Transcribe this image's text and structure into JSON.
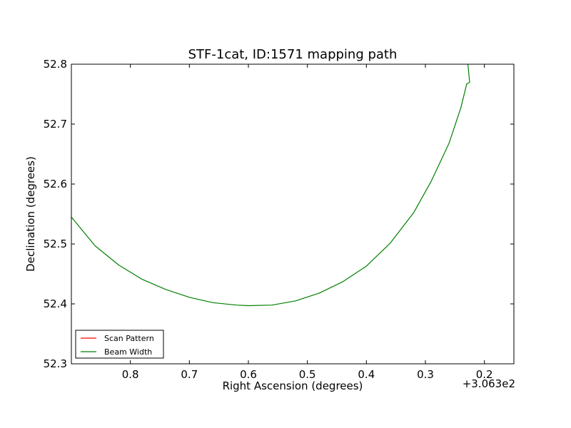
{
  "chart_data": {
    "type": "line",
    "title": "STF-1cat, ID:1571 mapping path",
    "xlabel": "Right Ascension (degrees)",
    "ylabel": "Declination (degrees)",
    "x_offset_text": "+3.063e2",
    "xlim": [
      0.9,
      0.15
    ],
    "ylim": [
      52.3,
      52.8
    ],
    "x_inverted": true,
    "x_ticks": [
      0.8,
      0.7,
      0.6,
      0.5,
      0.4,
      0.3,
      0.2
    ],
    "x_tick_labels": [
      "0.8",
      "0.7",
      "0.6",
      "0.5",
      "0.4",
      "0.3",
      "0.2"
    ],
    "y_ticks": [
      52.3,
      52.4,
      52.5,
      52.6,
      52.7,
      52.8
    ],
    "y_tick_labels": [
      "52.3",
      "52.4",
      "52.5",
      "52.6",
      "52.7",
      "52.8"
    ],
    "grid": false,
    "legend_position": "lower-left",
    "series": [
      {
        "name": "Scan Pattern",
        "color": "#ff0000",
        "x": [],
        "y": []
      },
      {
        "name": "Beam Width",
        "color": "#008000",
        "x": [
          0.9,
          0.86,
          0.82,
          0.78,
          0.74,
          0.7,
          0.66,
          0.62,
          0.6,
          0.56,
          0.52,
          0.48,
          0.44,
          0.4,
          0.36,
          0.32,
          0.29,
          0.26,
          0.24,
          0.23,
          0.225,
          0.228
        ],
        "y": [
          52.545,
          52.497,
          52.465,
          52.441,
          52.424,
          52.411,
          52.402,
          52.398,
          52.397,
          52.398,
          52.405,
          52.418,
          52.437,
          52.463,
          52.501,
          52.552,
          52.605,
          52.668,
          52.727,
          52.767,
          52.77,
          52.8
        ]
      }
    ]
  }
}
